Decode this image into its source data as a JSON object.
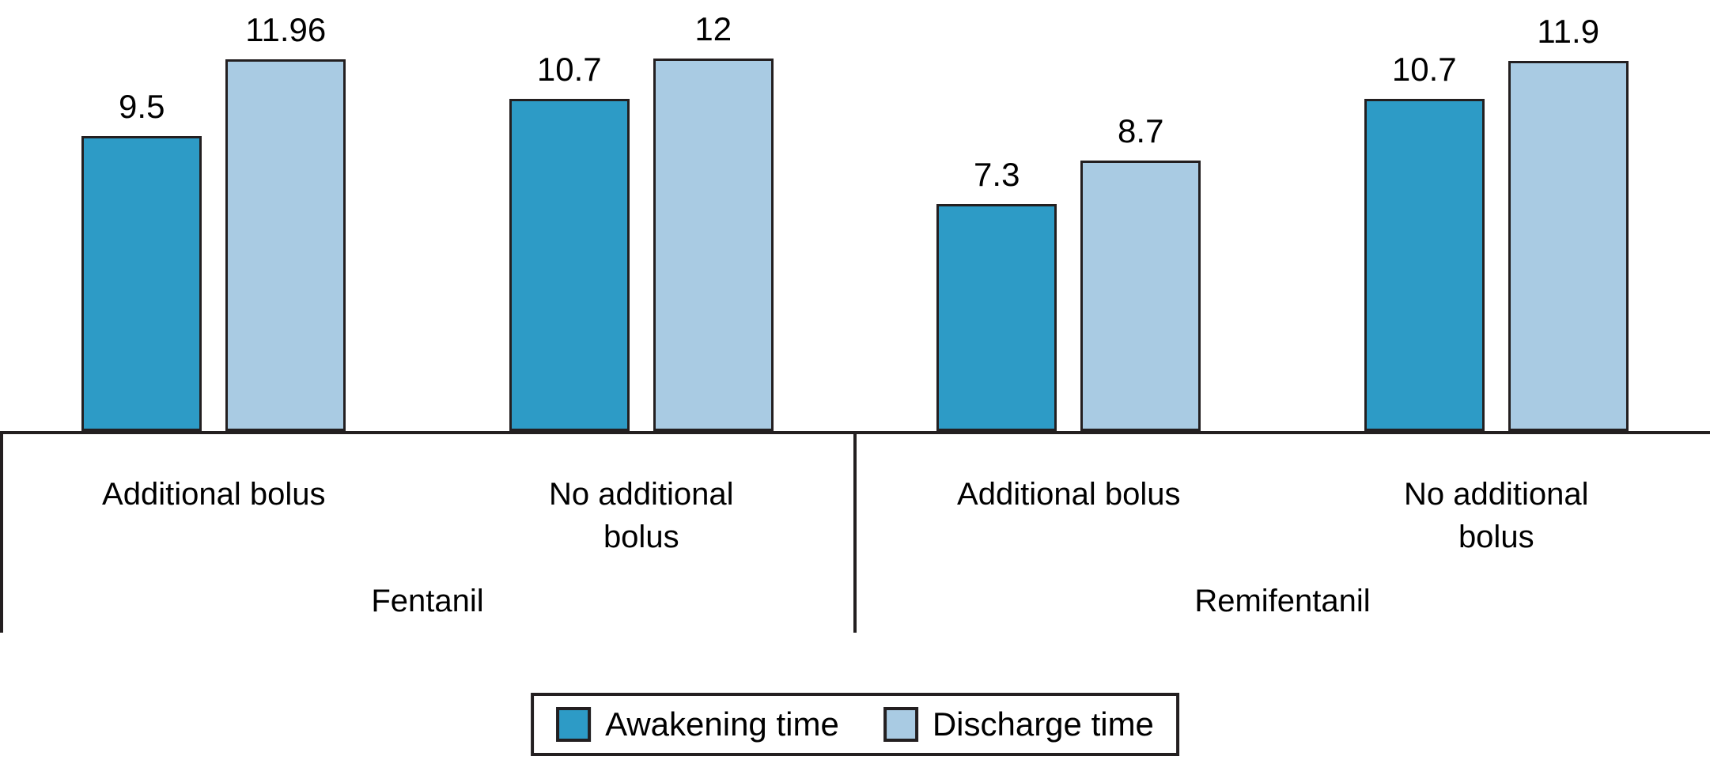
{
  "chart_data": {
    "type": "bar",
    "title": "",
    "xlabel": "",
    "ylabel": "",
    "ylim": [
      0,
      14
    ],
    "grid": false,
    "legend_position": "bottom-center",
    "categories": [
      "Additional bolus",
      "No additional bolus",
      "Additional bolus",
      "No additional bolus"
    ],
    "category_display": [
      "Additional bolus",
      "No additional\nbolus",
      "Additional bolus",
      "No additional\nbolus"
    ],
    "groups": [
      {
        "label": "Fentanil",
        "category_indexes": [
          0,
          1
        ]
      },
      {
        "label": "Remifentanil",
        "category_indexes": [
          2,
          3
        ]
      }
    ],
    "series": [
      {
        "name": "Awakening time",
        "color": "#2D9BC6",
        "values": [
          9.5,
          10.7,
          7.3,
          10.7
        ],
        "value_labels": [
          "9.5",
          "10.7",
          "7.3",
          "10.7"
        ]
      },
      {
        "name": "Discharge time",
        "color": "#A9CBE3",
        "values": [
          11.96,
          12,
          8.7,
          11.9
        ],
        "value_labels": [
          "11.96",
          "12",
          "8.7",
          "11.9"
        ]
      }
    ]
  },
  "legend": {
    "items": [
      {
        "label": "Awakening time",
        "color": "#2D9BC6"
      },
      {
        "label": "Discharge time",
        "color": "#A9CBE3"
      }
    ]
  },
  "colors": {
    "bar_outline": "#231F20",
    "axis_line": "#231F20",
    "text": "#000000",
    "background": "#FFFFFF"
  }
}
